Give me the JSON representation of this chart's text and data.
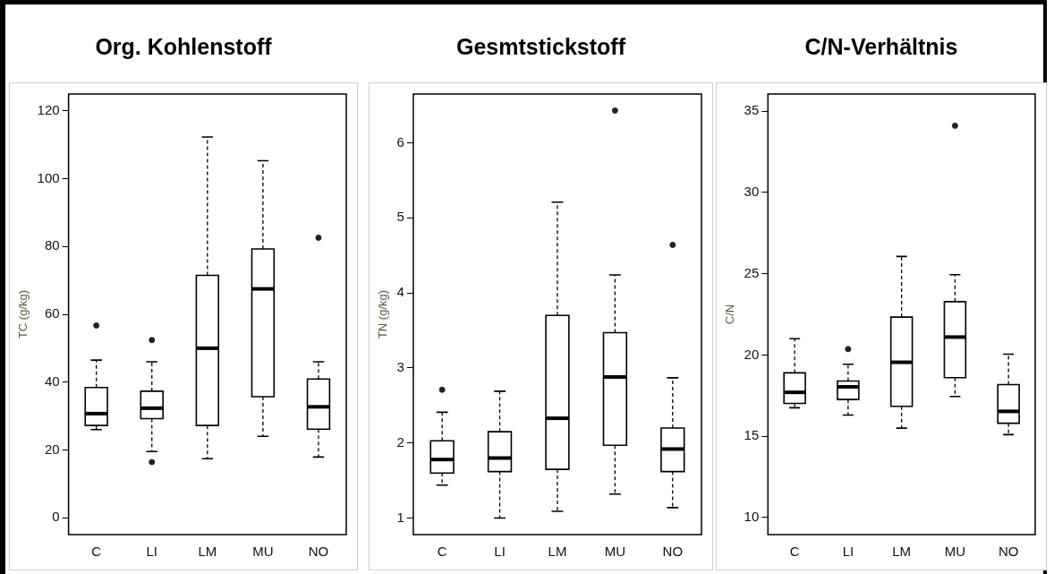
{
  "chart_data": [
    {
      "type": "box",
      "title": "Org. Kohlenstoff",
      "ylabel": "TC (g/kg)",
      "categories": [
        "C",
        "LI",
        "LM",
        "MU",
        "NO"
      ],
      "ylim": [
        -5,
        125
      ],
      "yticks": [
        0,
        20,
        40,
        60,
        80,
        100,
        120
      ],
      "boxes": [
        {
          "low": 26,
          "q1": 27.2,
          "median": 30.7,
          "q3": 38.4,
          "high": 46.5,
          "outliers": [
            56.7
          ]
        },
        {
          "low": 19.5,
          "q1": 29.2,
          "median": 32.3,
          "q3": 37.3,
          "high": 46,
          "outliers": [
            52.4,
            16.4
          ]
        },
        {
          "low": 17.4,
          "q1": 27.2,
          "median": 50,
          "q3": 71.5,
          "high": 112.3
        },
        {
          "low": 24,
          "q1": 35.7,
          "median": 67.5,
          "q3": 79.3,
          "high": 105.3
        },
        {
          "low": 17.9,
          "q1": 26.1,
          "median": 32.7,
          "q3": 40.9,
          "high": 46,
          "outliers": [
            82.6
          ]
        }
      ]
    },
    {
      "type": "box",
      "title": "Gesmtstickstoff",
      "ylabel": "TN (g/kg)",
      "categories": [
        "C",
        "LI",
        "LM",
        "MU",
        "NO"
      ],
      "ylim": [
        0.78,
        6.65
      ],
      "yticks": [
        1,
        2,
        3,
        4,
        5,
        6
      ],
      "boxes": [
        {
          "low": 1.44,
          "q1": 1.6,
          "median": 1.78,
          "q3": 2.03,
          "high": 2.41,
          "outliers": [
            2.71
          ]
        },
        {
          "low": 1.0,
          "q1": 1.62,
          "median": 1.8,
          "q3": 2.15,
          "high": 2.69
        },
        {
          "low": 1.09,
          "q1": 1.65,
          "median": 2.33,
          "q3": 3.7,
          "high": 5.21
        },
        {
          "low": 1.32,
          "q1": 1.97,
          "median": 2.88,
          "q3": 3.47,
          "high": 4.24,
          "outliers": [
            6.43
          ]
        },
        {
          "low": 1.14,
          "q1": 1.62,
          "median": 1.92,
          "q3": 2.2,
          "high": 2.87,
          "outliers": [
            4.64
          ]
        }
      ]
    },
    {
      "type": "box",
      "title": "C/N-Verhältnis",
      "ylabel": "C/N",
      "categories": [
        "C",
        "LI",
        "LM",
        "MU",
        "NO"
      ],
      "ylim": [
        8.95,
        36.05
      ],
      "yticks": [
        10,
        15,
        20,
        25,
        30,
        35
      ],
      "boxes": [
        {
          "low": 16.75,
          "q1": 17.02,
          "median": 17.7,
          "q3": 18.9,
          "high": 21
        },
        {
          "low": 16.3,
          "q1": 17.26,
          "median": 18.04,
          "q3": 18.4,
          "high": 19.43,
          "outliers": [
            20.36
          ]
        },
        {
          "low": 15.5,
          "q1": 16.84,
          "median": 19.55,
          "q3": 22.33,
          "high": 26.06
        },
        {
          "low": 17.45,
          "q1": 18.6,
          "median": 21.1,
          "q3": 23.28,
          "high": 24.94,
          "outliers": [
            34.1
          ]
        },
        {
          "low": 15.1,
          "q1": 15.8,
          "median": 16.53,
          "q3": 18.18,
          "high": 20.05
        }
      ]
    }
  ]
}
